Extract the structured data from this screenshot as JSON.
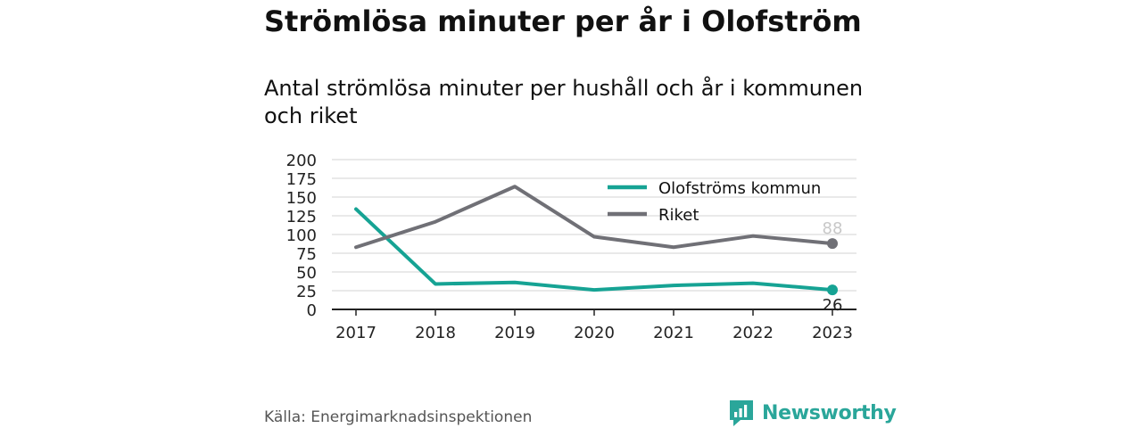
{
  "title": "Strömlösa minuter per år i Olofström",
  "subtitle": "Antal strömlösa minuter per hushåll och år i kommunen och riket",
  "source": "Källa: Energimarknadsinspektionen",
  "brand": {
    "name": "Newsworthy",
    "icon": "newsworthy-logo-icon",
    "color": "#2aa69a"
  },
  "chart_data": {
    "type": "line",
    "x": [
      "2017",
      "2018",
      "2019",
      "2020",
      "2021",
      "2022",
      "2023"
    ],
    "y_ticks": [
      "200",
      "175",
      "150",
      "125",
      "100",
      "75",
      "50",
      "25",
      "0"
    ],
    "ylim": [
      0,
      200
    ],
    "grid": true,
    "legend_position": "top-right",
    "series": [
      {
        "name": "Olofströms kommun",
        "color": "#16a394",
        "values": [
          134,
          34,
          36,
          26,
          32,
          35,
          26
        ],
        "end_label": "26"
      },
      {
        "name": "Riket",
        "color": "#707076",
        "values": [
          83,
          117,
          164,
          97,
          83,
          98,
          88
        ],
        "end_label": "88"
      }
    ]
  }
}
